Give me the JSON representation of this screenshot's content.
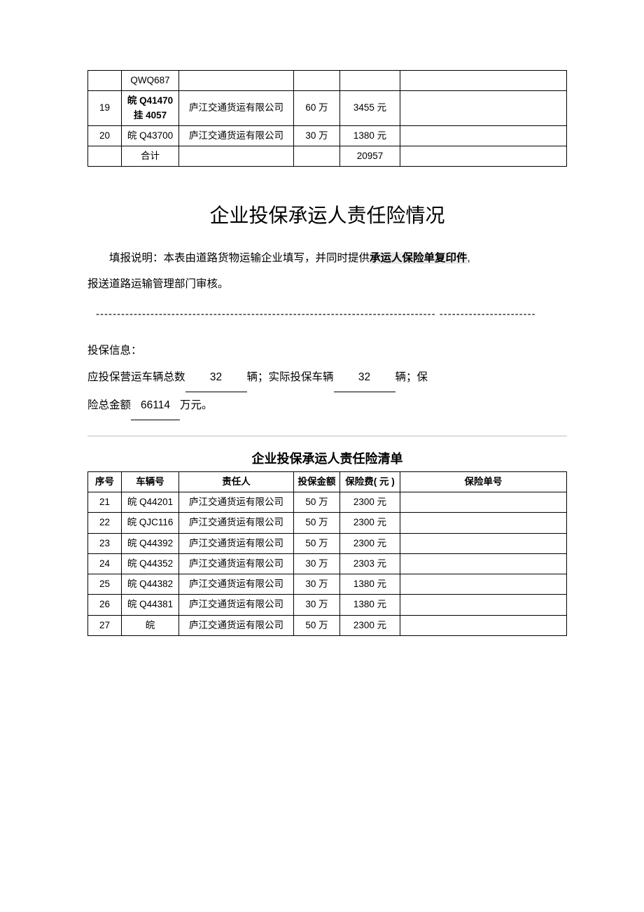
{
  "top_table": {
    "rows": [
      {
        "seq": "",
        "vehicle": "QWQ687",
        "responsible": "",
        "amount": "",
        "fee": "",
        "policy": ""
      },
      {
        "seq": "19",
        "vehicle": "皖 Q41470 挂 4057",
        "responsible": "庐江交通货运有限公司",
        "amount": "60 万",
        "fee": "3455 元",
        "policy": "",
        "vehicle_bold": true
      },
      {
        "seq": "20",
        "vehicle": "皖 Q43700",
        "responsible": "庐江交通货运有限公司",
        "amount": "30 万",
        "fee": "1380 元",
        "policy": ""
      },
      {
        "seq": "",
        "vehicle": "合计",
        "responsible": "",
        "amount": "",
        "fee": "20957",
        "policy": ""
      }
    ]
  },
  "title": "企业投保承运人责任险情况",
  "instruction": {
    "lead": "填报说明：本表由道路货物运输企业填写，并同时提供",
    "highlight": "承运人保险单复印件",
    "tail1": ",",
    "tail2": "报送道路运输管理部门审核。"
  },
  "separator": " --------------------------------------------------------------------------------- -----------------------",
  "info_header": "投保信息：",
  "insurance_info": {
    "label1": "应投保营运车辆总数",
    "value1": "32",
    "unit1": "辆；实际投保车辆",
    "value2": "32",
    "unit2": "辆；保",
    "line2_pre": "险总金额",
    "value3": "66114",
    "unit3": "万元。"
  },
  "list_title": "企业投保承运人责任险清单",
  "list_table": {
    "headers": {
      "seq": "序号",
      "vehicle": "车辆号",
      "responsible": "责任人",
      "amount": "投保金额",
      "fee": "保险费( 元 )",
      "policy": "保险单号"
    },
    "rows": [
      {
        "seq": "21",
        "vehicle": "皖 Q44201",
        "responsible": "庐江交通货运有限公司",
        "amount": "50 万",
        "fee": "2300 元",
        "policy": ""
      },
      {
        "seq": "22",
        "vehicle": "皖 QJC116",
        "responsible": "庐江交通货运有限公司",
        "amount": "50 万",
        "fee": "2300 元",
        "policy": ""
      },
      {
        "seq": "23",
        "vehicle": "皖 Q44392",
        "responsible": "庐江交通货运有限公司",
        "amount": "50 万",
        "fee": "2300 元",
        "policy": ""
      },
      {
        "seq": "24",
        "vehicle": "皖 Q44352",
        "responsible": "庐江交通货运有限公司",
        "amount": "30 万",
        "fee": "2303 元",
        "policy": ""
      },
      {
        "seq": "25",
        "vehicle": "皖 Q44382",
        "responsible": "庐江交通货运有限公司",
        "amount": "30 万",
        "fee": "1380 元",
        "policy": ""
      },
      {
        "seq": "26",
        "vehicle": "皖 Q44381",
        "responsible": "庐江交通货运有限公司",
        "amount": "30 万",
        "fee": "1380 元",
        "policy": ""
      },
      {
        "seq": "27",
        "vehicle": "皖",
        "responsible": "庐江交通货运有限公司",
        "amount": "50 万",
        "fee": "2300 元",
        "policy": ""
      }
    ]
  }
}
